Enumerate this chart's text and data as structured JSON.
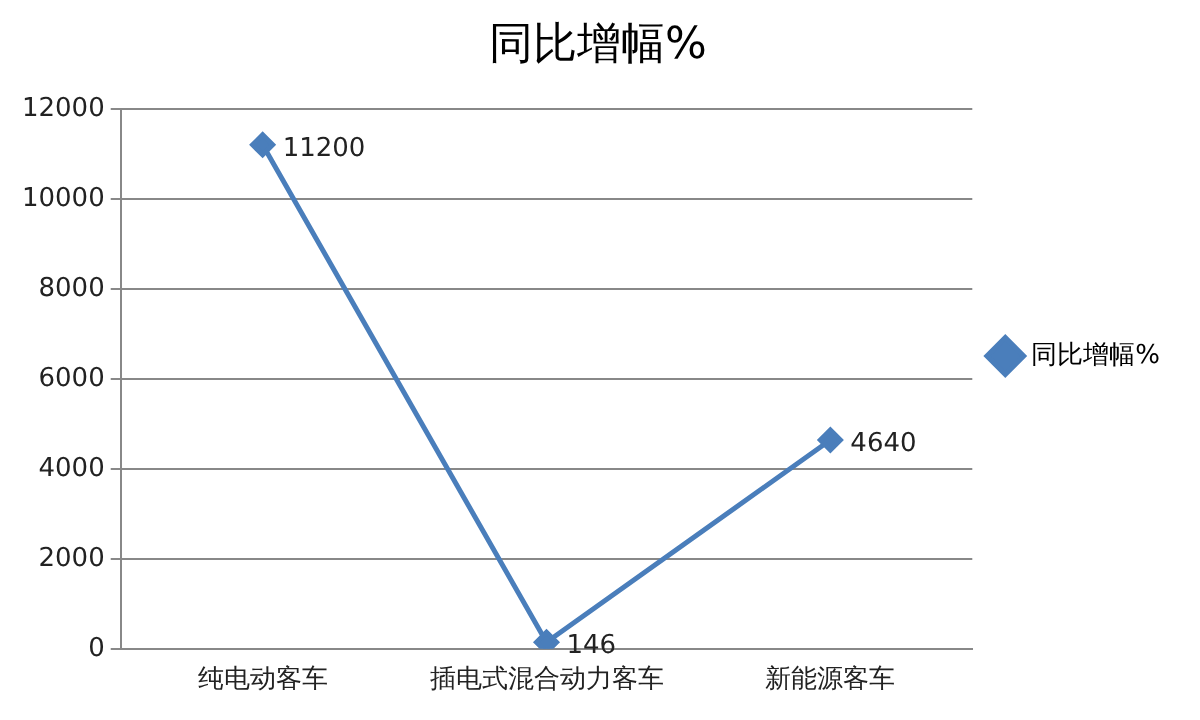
{
  "chart_data": {
    "type": "line",
    "title": "同比增幅%",
    "categories": [
      "纯电动客车",
      "插电式混合动力客车",
      "新能源客车"
    ],
    "series": [
      {
        "name": "同比增幅%",
        "color": "#4a7ebb",
        "values": [
          11200,
          146,
          4640
        ]
      }
    ],
    "ylim": [
      0,
      12000
    ],
    "yticks": [
      0,
      2000,
      4000,
      6000,
      8000,
      10000,
      12000
    ],
    "grid": "y",
    "legend": "right",
    "marker": "diamond",
    "line_style": "solid",
    "data_labels": true
  }
}
